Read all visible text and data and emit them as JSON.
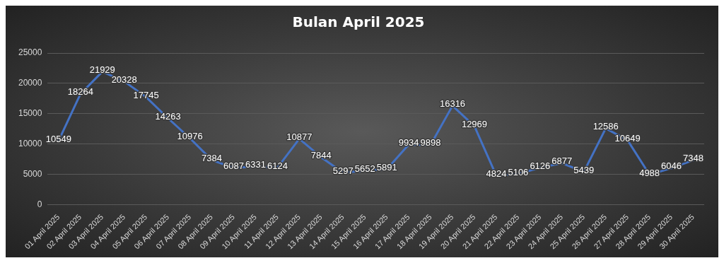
{
  "chart_data": {
    "type": "line",
    "title": "Bulan April 2025",
    "categories": [
      "01 April 2025",
      "02 April 2025",
      "03 April 2025",
      "04 April 2025",
      "05 April 2025",
      "06 April 2025",
      "07 April 2025",
      "08 April 2025",
      "09 April 2025",
      "10 April 2025",
      "11 April 2025",
      "12 April 2025",
      "13 April 2025",
      "14 April 2025",
      "15 April 2025",
      "16 April 2025",
      "17 April 2025",
      "18 April 2025",
      "19 April 2025",
      "20 April 2025",
      "21 April 2025",
      "22 April 2025",
      "23 April 2025",
      "24 April 2025",
      "25 April 2025",
      "26 April 2025",
      "27 April 2025",
      "28 April 2025",
      "29 April 2025",
      "30 April 2025"
    ],
    "series": [
      {
        "color": "#4472c4",
        "values": [
          10549,
          18264,
          21929,
          20328,
          17745,
          14263,
          10976,
          7384,
          6087,
          6331,
          6124,
          10877,
          7844,
          5297,
          5652,
          5891,
          9934,
          9898,
          16316,
          12969,
          4824,
          5106,
          6126,
          6877,
          5439,
          12586,
          10649,
          4988,
          6046,
          7348
        ]
      }
    ],
    "ylim": [
      0,
      25000
    ],
    "yticks": [
      0,
      5000,
      10000,
      15000,
      20000,
      25000
    ],
    "grid": "y",
    "data_labels": true,
    "marker": "none",
    "line_style": "solid"
  }
}
